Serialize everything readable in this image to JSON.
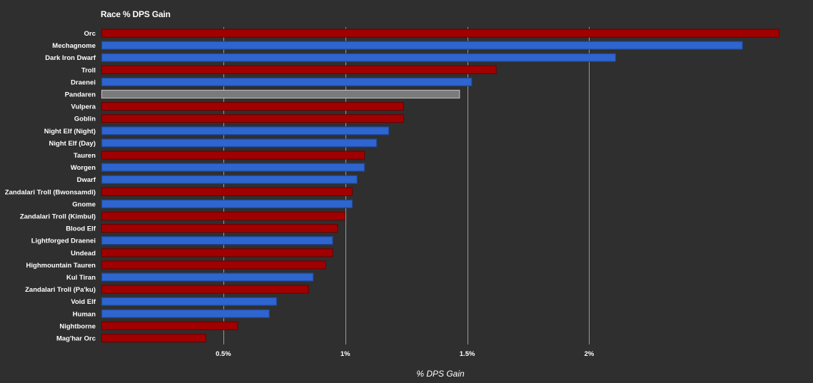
{
  "chart_data": {
    "type": "bar",
    "orientation": "horizontal",
    "title": "Race % DPS Gain",
    "xlabel": "% DPS Gain",
    "ylabel": "",
    "xlim": [
      0,
      2.78
    ],
    "x_ticks": [
      0.5,
      1,
      1.5,
      2
    ],
    "x_tick_labels": [
      "0.5%",
      "1%",
      "1.5%",
      "2%"
    ],
    "grid": "vertical",
    "legend": "none",
    "colors": {
      "red": "#a10000",
      "blue": "#2e65cf",
      "gray": "#7a7a7a",
      "background": "#2f2f2f",
      "grid": "#9a9a9a"
    },
    "categories": [
      "Orc",
      "Mechagnome",
      "Dark Iron Dwarf",
      "Troll",
      "Draenei",
      "Pandaren",
      "Vulpera",
      "Goblin",
      "Night Elf (Night)",
      "Night Elf (Day)",
      "Tauren",
      "Worgen",
      "Dwarf",
      "Zandalari Troll (Bwonsamdi)",
      "Gnome",
      "Zandalari Troll (Kimbul)",
      "Blood Elf",
      "Lightforged Draenei",
      "Undead",
      "Highmountain Tauren",
      "Kul Tiran",
      "Zandalari Troll (Pa'ku)",
      "Void Elf",
      "Human",
      "Nightborne",
      "Mag'har Orc"
    ],
    "values": [
      2.78,
      2.63,
      2.11,
      1.62,
      1.52,
      1.47,
      1.24,
      1.24,
      1.18,
      1.13,
      1.08,
      1.08,
      1.05,
      1.03,
      1.03,
      1.0,
      0.97,
      0.95,
      0.95,
      0.92,
      0.87,
      0.85,
      0.72,
      0.69,
      0.56,
      0.43
    ],
    "bar_colors": [
      "red",
      "blue",
      "blue",
      "red",
      "blue",
      "gray",
      "red",
      "red",
      "blue",
      "blue",
      "red",
      "blue",
      "blue",
      "red",
      "blue",
      "red",
      "red",
      "blue",
      "red",
      "red",
      "blue",
      "red",
      "blue",
      "blue",
      "red",
      "red"
    ]
  }
}
